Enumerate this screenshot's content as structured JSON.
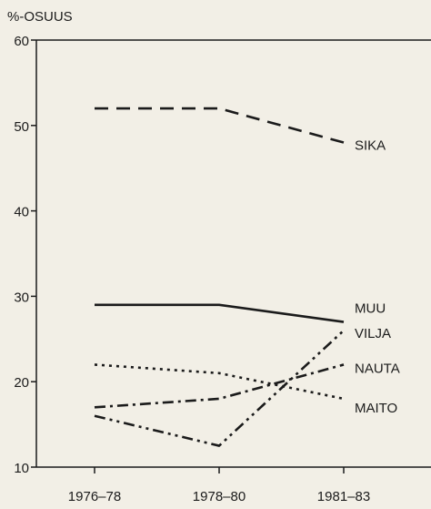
{
  "chart_data": {
    "type": "line",
    "title": "",
    "ylabel": "%-OSUUS",
    "xlabel": "",
    "categories": [
      "1976–78",
      "1978–80",
      "1981–83"
    ],
    "ylim": [
      10,
      60
    ],
    "yticks": [
      "10",
      "20",
      "30",
      "40",
      "50",
      "60"
    ],
    "grid": false,
    "legend": "inline labels at right end of each line",
    "series": [
      {
        "name": "SIKA",
        "values": [
          52,
          52,
          48
        ],
        "style": "dashed"
      },
      {
        "name": "MUU",
        "values": [
          29,
          29,
          27
        ],
        "style": "solid"
      },
      {
        "name": "VILJA",
        "values": [
          16,
          12.5,
          26
        ],
        "style": "dash-dot-dot"
      },
      {
        "name": "NAUTA",
        "values": [
          17,
          18,
          22
        ],
        "style": "dash-dot"
      },
      {
        "name": "MAITO",
        "values": [
          22,
          21,
          18
        ],
        "style": "dotted"
      }
    ]
  }
}
